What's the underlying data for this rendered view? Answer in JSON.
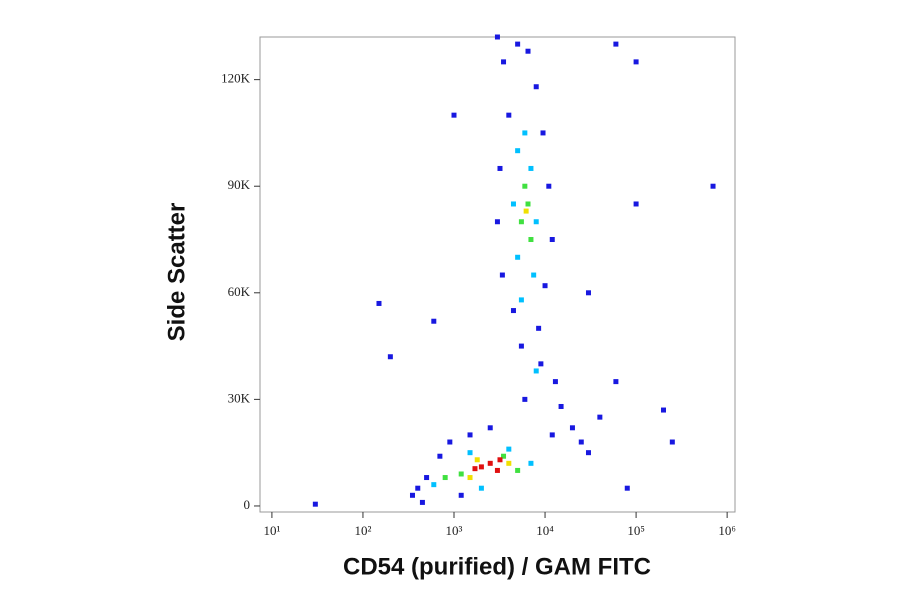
{
  "chart_data": {
    "type": "scatter",
    "xlabel": "CD54 (purified) / GAM FITC",
    "ylabel": "Side Scatter",
    "xscale": "log",
    "xlim": [
      7.4,
      1220000
    ],
    "ylim": [
      -1700,
      132000
    ],
    "xticks": [
      {
        "value": 10,
        "label": "10¹"
      },
      {
        "value": 100,
        "label": "10²"
      },
      {
        "value": 1000,
        "label": "10³"
      },
      {
        "value": 10000,
        "label": "10⁴"
      },
      {
        "value": 100000,
        "label": "10⁵"
      },
      {
        "value": 1000000,
        "label": "10⁶"
      }
    ],
    "yticks": [
      0,
      {
        "value": 30000,
        "label": "30K"
      },
      {
        "value": 60000,
        "label": "60K"
      },
      {
        "value": 90000,
        "label": "90K"
      },
      {
        "value": 120000,
        "label": "120K"
      }
    ],
    "series": [
      {
        "color": "#1818e0",
        "x": [
          3500,
          5000,
          6500,
          8000,
          4000,
          9500,
          3200,
          11000,
          3000,
          12000,
          3400,
          10000,
          4500,
          8500,
          5500,
          9000,
          13000,
          6000,
          15000,
          20000,
          25000,
          12000,
          30000,
          700,
          500,
          350,
          450,
          900,
          1500,
          2500,
          40000,
          60000,
          150,
          600,
          1000,
          200,
          30,
          700000,
          100000,
          60000,
          3000,
          30000,
          100000,
          200000,
          250000,
          80000,
          400,
          1200
        ],
        "y": [
          125000,
          130000,
          128000,
          118000,
          110000,
          105000,
          95000,
          90000,
          80000,
          75000,
          65000,
          62000,
          55000,
          50000,
          45000,
          40000,
          35000,
          30000,
          28000,
          22000,
          18000,
          20000,
          15000,
          14000,
          8000,
          3000,
          1000,
          18000,
          20000,
          22000,
          25000,
          35000,
          57000,
          52000,
          110000,
          42000,
          500,
          90000,
          125000,
          130000,
          132000,
          60000,
          85000,
          27000,
          18000,
          5000,
          5000,
          3000
        ]
      },
      {
        "color": "#00c0ff",
        "x": [
          5000,
          7000,
          4500,
          8000,
          5000,
          7500,
          6000,
          600,
          1500,
          4000,
          7000,
          2000,
          8000,
          5500
        ],
        "y": [
          100000,
          95000,
          85000,
          80000,
          70000,
          65000,
          105000,
          6000,
          15000,
          16000,
          12000,
          5000,
          38000,
          58000
        ]
      },
      {
        "color": "#40e040",
        "x": [
          6000,
          5500,
          7000,
          6500,
          800,
          3500,
          5000,
          1200
        ],
        "y": [
          90000,
          80000,
          75000,
          85000,
          8000,
          14000,
          10000,
          9000
        ]
      },
      {
        "color": "#f0e000",
        "x": [
          6200,
          1500,
          4000,
          1800
        ],
        "y": [
          83000,
          8000,
          12000,
          13000
        ]
      },
      {
        "color": "#e01010",
        "x": [
          2000,
          2500,
          3000,
          3200,
          1700
        ],
        "y": [
          11000,
          12000,
          10000,
          13000,
          10500
        ]
      }
    ]
  }
}
